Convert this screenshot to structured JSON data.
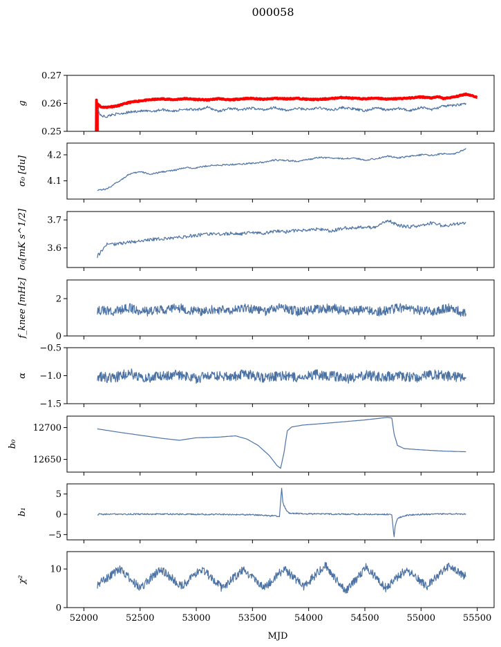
{
  "title": "000058",
  "colors": {
    "series": "#4c72a4",
    "highlight": "#ff0000",
    "axis": "#000000"
  },
  "chart_data": [
    {
      "type": "line",
      "ylabel": "g",
      "ylim": [
        0.25,
        0.27
      ],
      "yticks": [
        0.25,
        0.26,
        0.27
      ],
      "ytick_labels": [
        "0.25",
        "0.26",
        "0.27"
      ],
      "series": [
        {
          "color": "#ff0000",
          "style": "thick",
          "x": [
            52120,
            52150,
            52200,
            52300,
            52400,
            52500,
            52600,
            52700,
            52800,
            52900,
            53000,
            53100,
            53200,
            53300,
            53400,
            53500,
            53600,
            53700,
            53800,
            53900,
            54000,
            54100,
            54200,
            54300,
            54400,
            54500,
            54600,
            54700,
            54800,
            54900,
            55000,
            55100,
            55150,
            55200,
            55300,
            55400,
            55450,
            55500
          ],
          "y": [
            0.26,
            0.2587,
            0.2586,
            0.2591,
            0.2603,
            0.2609,
            0.2613,
            0.2616,
            0.2613,
            0.2617,
            0.2614,
            0.2612,
            0.2617,
            0.2612,
            0.2616,
            0.2618,
            0.2614,
            0.2618,
            0.2616,
            0.2618,
            0.2614,
            0.2614,
            0.2617,
            0.2621,
            0.2618,
            0.2616,
            0.2619,
            0.2615,
            0.2617,
            0.2619,
            0.2623,
            0.2619,
            0.2624,
            0.2617,
            0.2623,
            0.2633,
            0.2628,
            0.2621
          ]
        },
        {
          "color": "#4c72a4",
          "style": "thin",
          "x": [
            52120,
            52150,
            52200,
            52250,
            52300,
            52400,
            52500,
            52600,
            52700,
            52800,
            52900,
            53000,
            53100,
            53200,
            53300,
            53400,
            53500,
            53600,
            53700,
            53800,
            53900,
            54000,
            54100,
            54200,
            54300,
            54400,
            54500,
            54600,
            54700,
            54800,
            54900,
            55000,
            55100,
            55200,
            55300,
            55400
          ],
          "y": [
            0.2582,
            0.2556,
            0.2552,
            0.256,
            0.2562,
            0.2568,
            0.2573,
            0.2571,
            0.2578,
            0.2572,
            0.258,
            0.2576,
            0.2586,
            0.2572,
            0.2582,
            0.2577,
            0.2583,
            0.2577,
            0.2586,
            0.2574,
            0.2582,
            0.2578,
            0.2584,
            0.2576,
            0.2585,
            0.258,
            0.2573,
            0.2584,
            0.2576,
            0.2582,
            0.2574,
            0.2586,
            0.2578,
            0.259,
            0.2593,
            0.26
          ]
        }
      ],
      "annotations": [
        "red trace drops sharply to bottom near MJD 52110"
      ]
    },
    {
      "type": "line",
      "ylabel": "σ₀ [du]",
      "ylim": [
        4.03,
        4.245
      ],
      "yticks": [
        4.1,
        4.2
      ],
      "ytick_labels": [
        "4.1",
        "4.2"
      ],
      "x": [
        52120,
        52200,
        52300,
        52400,
        52500,
        52600,
        52700,
        52800,
        52900,
        53000,
        53100,
        53200,
        53300,
        53400,
        53500,
        53600,
        53700,
        53800,
        53900,
        54000,
        54100,
        54200,
        54300,
        54400,
        54500,
        54600,
        54700,
        54800,
        54900,
        55000,
        55100,
        55200,
        55300,
        55400
      ],
      "y": [
        4.065,
        4.068,
        4.095,
        4.125,
        4.135,
        4.125,
        4.135,
        4.14,
        4.15,
        4.15,
        4.158,
        4.16,
        4.162,
        4.165,
        4.168,
        4.172,
        4.18,
        4.178,
        4.175,
        4.182,
        4.19,
        4.188,
        4.185,
        4.188,
        4.18,
        4.185,
        4.195,
        4.188,
        4.195,
        4.2,
        4.198,
        4.205,
        4.203,
        4.225
      ]
    },
    {
      "type": "line",
      "ylabel": "σ₀[mK s^1/2]",
      "ylim": [
        3.53,
        3.73
      ],
      "yticks": [
        3.6,
        3.7
      ],
      "ytick_labels": [
        "3.6",
        "3.7"
      ],
      "x": [
        52120,
        52200,
        52300,
        52400,
        52500,
        52600,
        52700,
        52800,
        52900,
        53000,
        53100,
        53200,
        53300,
        53400,
        53500,
        53600,
        53700,
        53800,
        53900,
        54000,
        54100,
        54200,
        54300,
        54400,
        54500,
        54600,
        54700,
        54800,
        54900,
        55000,
        55100,
        55200,
        55300,
        55400
      ],
      "y": [
        3.57,
        3.612,
        3.615,
        3.62,
        3.625,
        3.63,
        3.632,
        3.636,
        3.64,
        3.645,
        3.65,
        3.648,
        3.652,
        3.65,
        3.655,
        3.652,
        3.66,
        3.658,
        3.662,
        3.665,
        3.668,
        3.66,
        3.67,
        3.672,
        3.675,
        3.672,
        3.7,
        3.68,
        3.675,
        3.68,
        3.69,
        3.678,
        3.685,
        3.69
      ]
    },
    {
      "type": "line",
      "ylabel": "f_knee [mHz]",
      "ylim": [
        0,
        3.0
      ],
      "yticks": [
        0,
        2
      ],
      "ytick_labels": [
        "0",
        "2"
      ],
      "x": [
        52120,
        52250,
        52400,
        52550,
        52700,
        52850,
        53000,
        53150,
        53300,
        53450,
        53600,
        53750,
        53900,
        54050,
        54200,
        54350,
        54500,
        54650,
        54800,
        54950,
        55100,
        55250,
        55400
      ],
      "y": [
        1.4,
        1.3,
        1.5,
        1.3,
        1.4,
        1.5,
        1.3,
        1.4,
        1.4,
        1.5,
        1.3,
        1.6,
        1.3,
        1.4,
        1.5,
        1.3,
        1.4,
        1.3,
        1.5,
        1.4,
        1.3,
        1.5,
        1.2
      ]
    },
    {
      "type": "line",
      "ylabel": "α",
      "ylim": [
        -1.5,
        -0.5
      ],
      "yticks": [
        -1.5,
        -1.0,
        -0.5
      ],
      "ytick_labels": [
        "−1.5",
        "−1.0",
        "−0.5"
      ],
      "x": [
        52120,
        52250,
        52400,
        52550,
        52700,
        52850,
        53000,
        53150,
        53300,
        53450,
        53600,
        53750,
        53900,
        54050,
        54200,
        54350,
        54500,
        54650,
        54800,
        54950,
        55100,
        55250,
        55400
      ],
      "y": [
        -1.0,
        -1.05,
        -0.95,
        -1.05,
        -1.0,
        -0.98,
        -1.05,
        -1.0,
        -1.02,
        -0.97,
        -1.04,
        -1.0,
        -1.03,
        -0.98,
        -1.0,
        -1.05,
        -0.99,
        -1.02,
        -1.0,
        -1.04,
        -0.98,
        -1.01,
        -1.03
      ]
    },
    {
      "type": "line",
      "ylabel": "b₀",
      "ylim": [
        12630,
        12718
      ],
      "yticks": [
        12650,
        12700
      ],
      "ytick_labels": [
        "12650",
        "12700"
      ],
      "x": [
        52120,
        52300,
        52500,
        52700,
        52850,
        53000,
        53200,
        53350,
        53450,
        53550,
        53650,
        53720,
        53750,
        53780,
        53810,
        53850,
        53950,
        54100,
        54300,
        54500,
        54700,
        54740,
        54760,
        54790,
        54850,
        55000,
        55200,
        55400
      ],
      "y": [
        12698,
        12693,
        12688,
        12683,
        12680,
        12684,
        12685,
        12687,
        12682,
        12672,
        12656,
        12640,
        12636,
        12660,
        12695,
        12701,
        12704,
        12706,
        12709,
        12712,
        12716,
        12715,
        12690,
        12672,
        12667,
        12665,
        12663,
        12662
      ]
    },
    {
      "type": "line",
      "ylabel": "b₁",
      "ylim": [
        -6.3,
        7.5
      ],
      "yticks": [
        -5,
        0,
        5
      ],
      "ytick_labels": [
        "−5",
        "0",
        "5"
      ],
      "x": [
        52120,
        52500,
        53000,
        53500,
        53700,
        53740,
        53760,
        53770,
        53780,
        53800,
        53830,
        54000,
        54500,
        54700,
        54740,
        54760,
        54770,
        54790,
        54850,
        55000,
        55400
      ],
      "y": [
        0,
        0.05,
        0,
        -0.1,
        -0.4,
        -0.5,
        6.5,
        3.0,
        2.2,
        1.0,
        0.3,
        0.1,
        0,
        0,
        -0.2,
        -5.5,
        -3.0,
        -1.0,
        -0.3,
        0,
        0.1
      ]
    },
    {
      "type": "line",
      "ylabel": "χ²",
      "ylim": [
        0,
        14.5
      ],
      "yticks": [
        0,
        10
      ],
      "ytick_labels": [
        "0",
        "10"
      ],
      "xlabel": "MJD",
      "x": [
        52120,
        52320,
        52500,
        52680,
        52870,
        53050,
        53230,
        53420,
        53600,
        53780,
        53960,
        54150,
        54330,
        54510,
        54690,
        54870,
        55050,
        55240,
        55400
      ],
      "y": [
        6,
        10,
        5,
        10,
        5.5,
        10,
        5,
        10,
        5,
        10,
        5.5,
        11,
        4,
        10.5,
        5,
        10,
        5.5,
        10.5,
        8
      ],
      "xlim": [
        51850,
        55650
      ],
      "xticks": [
        52000,
        52500,
        53000,
        53500,
        54000,
        54500,
        55000,
        55500
      ],
      "xtick_labels": [
        "52000",
        "52500",
        "53000",
        "53500",
        "54000",
        "54500",
        "55000",
        "55500"
      ]
    }
  ]
}
